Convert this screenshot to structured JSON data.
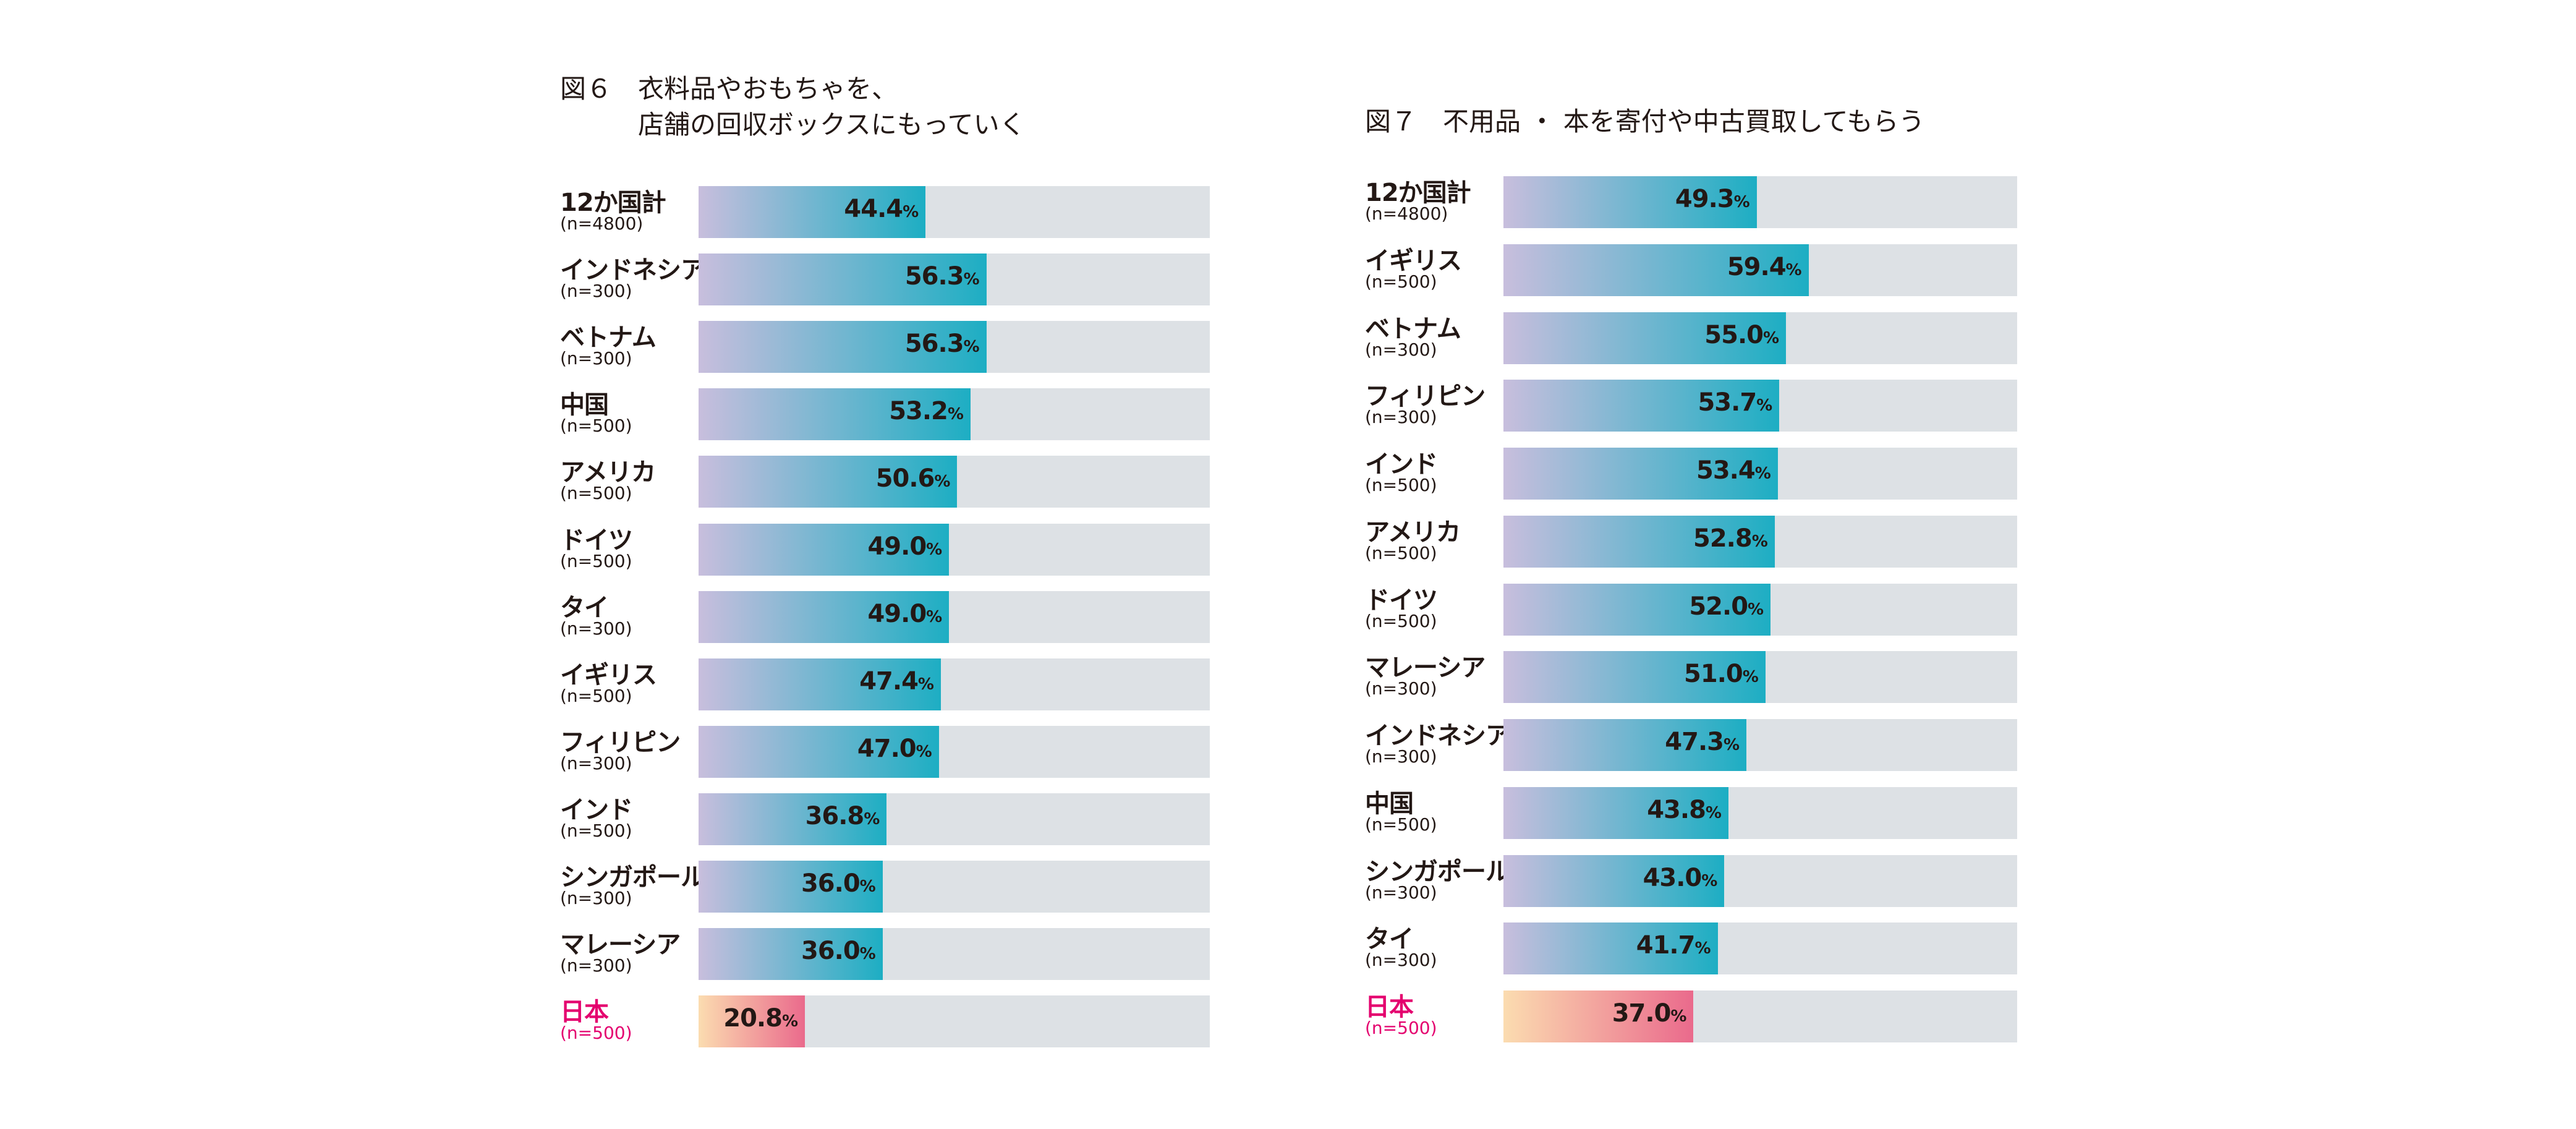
{
  "chart_data": [
    {
      "type": "bar",
      "orientation": "horizontal",
      "title": "図６　衣料品やおもちゃを、\n　　　店舗の回収ボックスにもっていく",
      "xlim": [
        0,
        100
      ],
      "unit": "%",
      "categories": [
        "12か国計",
        "インドネシア",
        "ベトナム",
        "中国",
        "アメリカ",
        "ドイツ",
        "タイ",
        "イギリス",
        "フィリピン",
        "インド",
        "シンガポール",
        "マレーシア",
        "日本"
      ],
      "samples": [
        "(n=4800)",
        "(n=300)",
        "(n=300)",
        "(n=500)",
        "(n=500)",
        "(n=500)",
        "(n=300)",
        "(n=500)",
        "(n=300)",
        "(n=500)",
        "(n=300)",
        "(n=300)",
        "(n=500)"
      ],
      "values": [
        44.4,
        56.3,
        56.3,
        53.2,
        50.6,
        49.0,
        49.0,
        47.4,
        47.0,
        36.8,
        36.0,
        36.0,
        20.8
      ],
      "highlight": "日本"
    },
    {
      "type": "bar",
      "orientation": "horizontal",
      "title": "図７　不用品 ・ 本を寄付や中古買取してもらう",
      "xlim": [
        0,
        100
      ],
      "unit": "%",
      "categories": [
        "12か国計",
        "イギリス",
        "ベトナム",
        "フィリピン",
        "インド",
        "アメリカ",
        "ドイツ",
        "マレーシア",
        "インドネシア",
        "中国",
        "シンガポール",
        "タイ",
        "日本"
      ],
      "samples": [
        "(n=4800)",
        "(n=500)",
        "(n=300)",
        "(n=300)",
        "(n=500)",
        "(n=500)",
        "(n=500)",
        "(n=300)",
        "(n=300)",
        "(n=500)",
        "(n=300)",
        "(n=300)",
        "(n=500)"
      ],
      "values": [
        49.3,
        59.4,
        55.0,
        53.7,
        53.4,
        52.8,
        52.0,
        51.0,
        47.3,
        43.8,
        43.0,
        41.7,
        37.0
      ],
      "highlight": "日本"
    }
  ],
  "colors": {
    "bar_start": "#c8bedd",
    "bar_end": "#1daec3",
    "japan_start": "#fbdcb0",
    "japan_end": "#ea6a8c",
    "track": "#dde1e5",
    "japan_label": "#e4006e"
  }
}
